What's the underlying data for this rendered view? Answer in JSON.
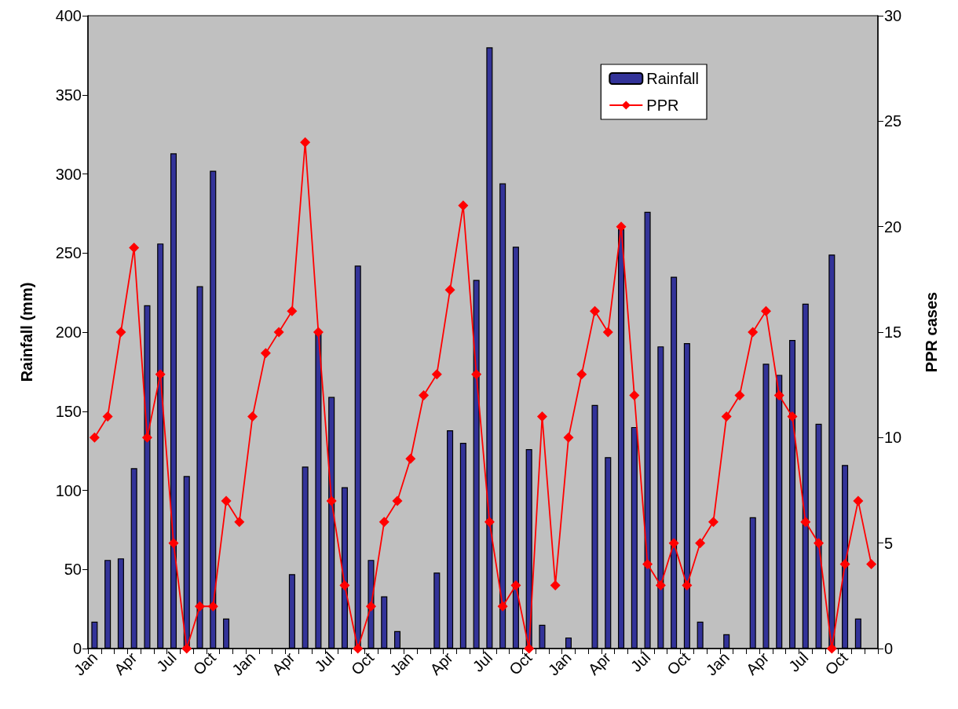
{
  "chart_data": {
    "type": "bar",
    "ylabel": "Rainfall (mm)",
    "y2label": "PPR cases",
    "categories": [
      "Jan",
      null,
      null,
      "Apr",
      null,
      null,
      "Jul",
      null,
      null,
      "Oct",
      null,
      null,
      "Jan",
      null,
      null,
      "Apr",
      null,
      null,
      "Jul",
      null,
      null,
      "Oct",
      null,
      null,
      "Jan",
      null,
      null,
      "Apr",
      null,
      null,
      "Jul",
      null,
      null,
      "Oct",
      null,
      null,
      "Jan",
      null,
      null,
      "Apr",
      null,
      null,
      "Jul",
      null,
      null,
      "Oct",
      null,
      null,
      "Jan",
      null,
      null,
      "Apr",
      null,
      null,
      "Jul",
      null,
      null,
      "Oct",
      null,
      null
    ],
    "series": [
      {
        "name": "Rainfall",
        "color": "#333399",
        "values": [
          17,
          56,
          57,
          114,
          217,
          256,
          313,
          109,
          229,
          302,
          19,
          0,
          0,
          0,
          0,
          47,
          115,
          200,
          159,
          102,
          242,
          56,
          33,
          11,
          0,
          0,
          48,
          138,
          130,
          233,
          380,
          294,
          254,
          126,
          15,
          0,
          7,
          0,
          154,
          121,
          265,
          140,
          276,
          191,
          235,
          193,
          17,
          0,
          9,
          0,
          83,
          180,
          173,
          195,
          218,
          142,
          249,
          116,
          19,
          0
        ]
      },
      {
        "name": "PPR",
        "type": "line",
        "axis": "y2",
        "color": "#ff0000",
        "values": [
          10,
          11,
          15,
          19,
          10,
          13,
          5,
          0,
          2,
          2,
          7,
          6,
          11,
          14,
          15,
          16,
          24,
          15,
          7,
          3,
          0,
          2,
          6,
          7,
          9,
          12,
          13,
          17,
          21,
          13,
          6,
          2,
          3,
          0,
          11,
          3,
          10,
          13,
          16,
          15,
          20,
          12,
          4,
          3,
          5,
          3,
          5,
          6,
          11,
          12,
          15,
          16,
          12,
          11,
          6,
          5,
          0,
          4,
          7,
          4
        ]
      }
    ],
    "ylim": [
      0,
      400
    ],
    "yticks": [
      0,
      50,
      100,
      150,
      200,
      250,
      300,
      350,
      400
    ],
    "y2lim": [
      0,
      30
    ],
    "y2ticks": [
      0,
      5,
      10,
      15,
      20,
      25,
      30
    ],
    "marker": "diamond",
    "line_style": "solid",
    "grid": false,
    "legend": "top right"
  }
}
